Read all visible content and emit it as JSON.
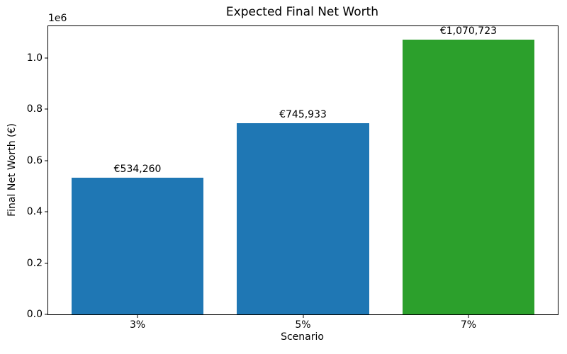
{
  "figure": {
    "background": "#ffffff",
    "text_color": "#000000",
    "spine_color": "#000000"
  },
  "chart_data": {
    "type": "bar",
    "title": "Expected Final Net Worth",
    "xlabel": "Scenario",
    "ylabel": "Final Net Worth (€)",
    "offset_text": "1e6",
    "categories": [
      "3%",
      "5%",
      "7%"
    ],
    "values": [
      534260,
      745933,
      1070723
    ],
    "bar_labels": [
      "€534,260",
      "€745,933",
      "€1,070,723"
    ],
    "bar_colors": [
      "#1f77b4",
      "#1f77b4",
      "#2ca02c"
    ],
    "ylim": [
      0,
      1124259
    ],
    "yticks": [
      0,
      200000,
      400000,
      600000,
      800000,
      1000000
    ],
    "ytick_labels": [
      "0.0",
      "0.2",
      "0.4",
      "0.6",
      "0.8",
      "1.0"
    ],
    "grid": false,
    "legend": null
  }
}
